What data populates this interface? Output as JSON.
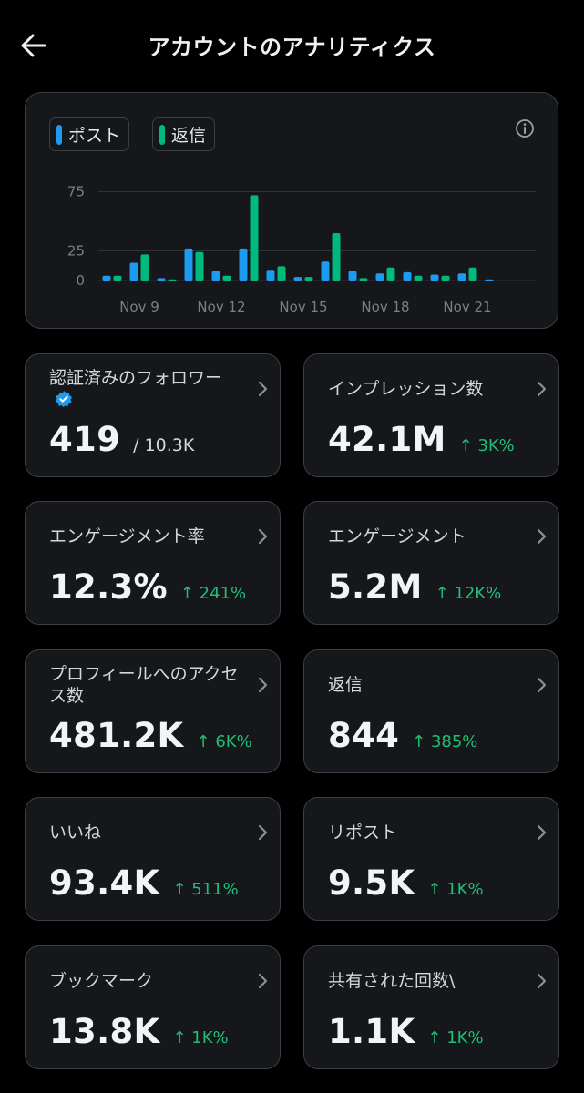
{
  "header": {
    "title": "アカウントのアナリティクス"
  },
  "colors": {
    "background": "#000000",
    "card": "#15171b",
    "border": "#3b3e44",
    "posts_series": "#1d9bf0",
    "replies_series": "#00ba7c",
    "positive_delta": "#1fbf75",
    "verified_badge": "#1d9bf0"
  },
  "icons": [
    "back-arrow-icon",
    "info-icon",
    "chevron-right-icon",
    "verified-badge-icon",
    "arrow-up-icon"
  ],
  "chart_data": {
    "type": "bar",
    "categories": [
      "Nov 8",
      "Nov 9",
      "Nov 10",
      "Nov 11",
      "Nov 12",
      "Nov 13",
      "Nov 14",
      "Nov 15",
      "Nov 16",
      "Nov 17",
      "Nov 18",
      "Nov 19",
      "Nov 20",
      "Nov 21",
      "Nov 22",
      "Nov 23"
    ],
    "x_tick_labels": [
      "Nov 9",
      "Nov 12",
      "Nov 15",
      "Nov 18",
      "Nov 21"
    ],
    "series": [
      {
        "name": "ポスト",
        "values": [
          4,
          15,
          2,
          27,
          8,
          27,
          9,
          3,
          16,
          8,
          6,
          7,
          5,
          6,
          1,
          0
        ]
      },
      {
        "name": "返信",
        "values": [
          4,
          22,
          1,
          24,
          4,
          72,
          12,
          3,
          40,
          2,
          11,
          4,
          4,
          11,
          0,
          0
        ]
      }
    ],
    "yticks": [
      0,
      25,
      75
    ],
    "ylim": [
      0,
      80
    ],
    "grid": true,
    "legend": "top-left"
  },
  "metrics": [
    {
      "label": "認証済みのフォロワー",
      "value": "419",
      "sub": "/ 10.3K",
      "delta": "",
      "verified": true
    },
    {
      "label": "インプレッション数",
      "value": "42.1M",
      "sub": "",
      "delta": "↑ 3K%"
    },
    {
      "label": "エンゲージメント率",
      "value": "12.3%",
      "sub": "",
      "delta": "↑ 241%"
    },
    {
      "label": "エンゲージメント",
      "value": "5.2M",
      "sub": "",
      "delta": "↑ 12K%"
    },
    {
      "label": "プロフィールへのアクセス数",
      "value": "481.2K",
      "sub": "",
      "delta": "↑ 6K%"
    },
    {
      "label": "返信",
      "value": "844",
      "sub": "",
      "delta": "↑ 385%"
    },
    {
      "label": "いいね",
      "value": "93.4K",
      "sub": "",
      "delta": "↑ 511%"
    },
    {
      "label": "リポスト",
      "value": "9.5K",
      "sub": "",
      "delta": "↑ 1K%"
    },
    {
      "label": "ブックマーク",
      "value": "13.8K",
      "sub": "",
      "delta": "↑ 1K%"
    },
    {
      "label": "共有された回数\\",
      "value": "1.1K",
      "sub": "",
      "delta": "↑ 1K%"
    }
  ]
}
